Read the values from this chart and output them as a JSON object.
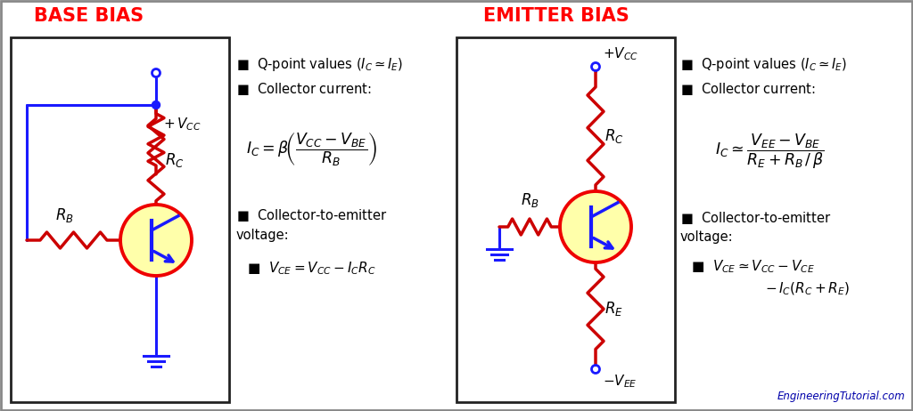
{
  "title_left": "BASE BIAS",
  "title_right": "EMITTER BIAS",
  "title_color": "#FF0000",
  "title_fontsize": 15,
  "bg_color": "#FFFFFF",
  "wire_color": "#1a1aff",
  "resistor_color": "#CC0000",
  "transistor_fill": "#FFFFAA",
  "transistor_border": "#EE0000",
  "transistor_inner": "#1a1aff",
  "watermark": "EngineeringTutorial.com",
  "watermark_color": "#0000AA",
  "panel_border": "#222222",
  "text_black": "#000000",
  "ground_color": "#1a1aff",
  "node_color": "#1a1aff"
}
